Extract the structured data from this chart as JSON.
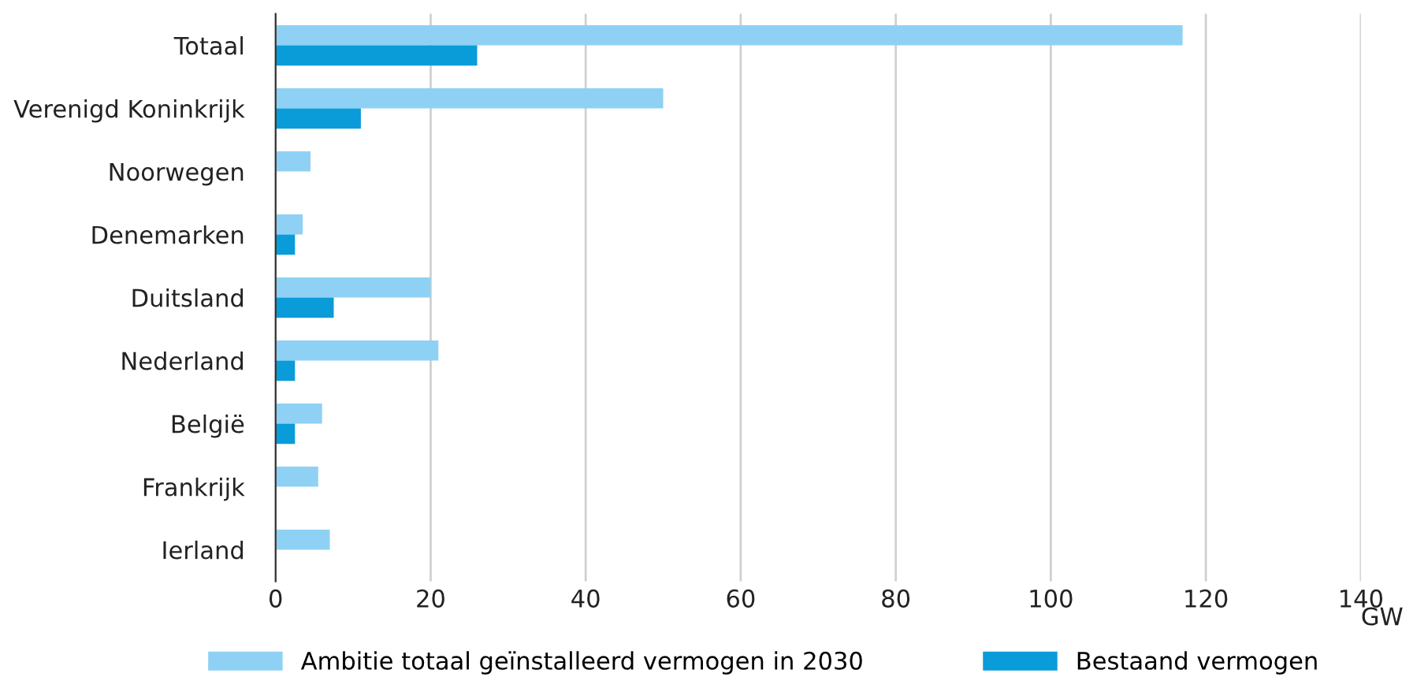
{
  "chart_data": {
    "type": "bar",
    "orientation": "horizontal",
    "categories": [
      "Totaal",
      "Verenigd Koninkrijk",
      "Noorwegen",
      "Denemarken",
      "Duitsland",
      "Nederland",
      "België",
      "Frankrijk",
      "Ierland"
    ],
    "series": [
      {
        "name": "Ambitie totaal geïnstalleerd vermogen in 2030",
        "color": "#8fd1f4",
        "values": [
          117,
          50,
          4.5,
          3.5,
          20,
          21,
          6,
          5.5,
          7
        ]
      },
      {
        "name": "Bestaand vermogen",
        "color": "#0a9bd9",
        "values": [
          26,
          11,
          null,
          2.5,
          7.5,
          2.5,
          2.5,
          null,
          null
        ]
      }
    ],
    "xlabel": "GW",
    "xlim": [
      0,
      140
    ],
    "xticks": [
      0,
      20,
      40,
      60,
      80,
      100,
      120,
      140
    ],
    "grid": "x",
    "legend": "bottom"
  }
}
